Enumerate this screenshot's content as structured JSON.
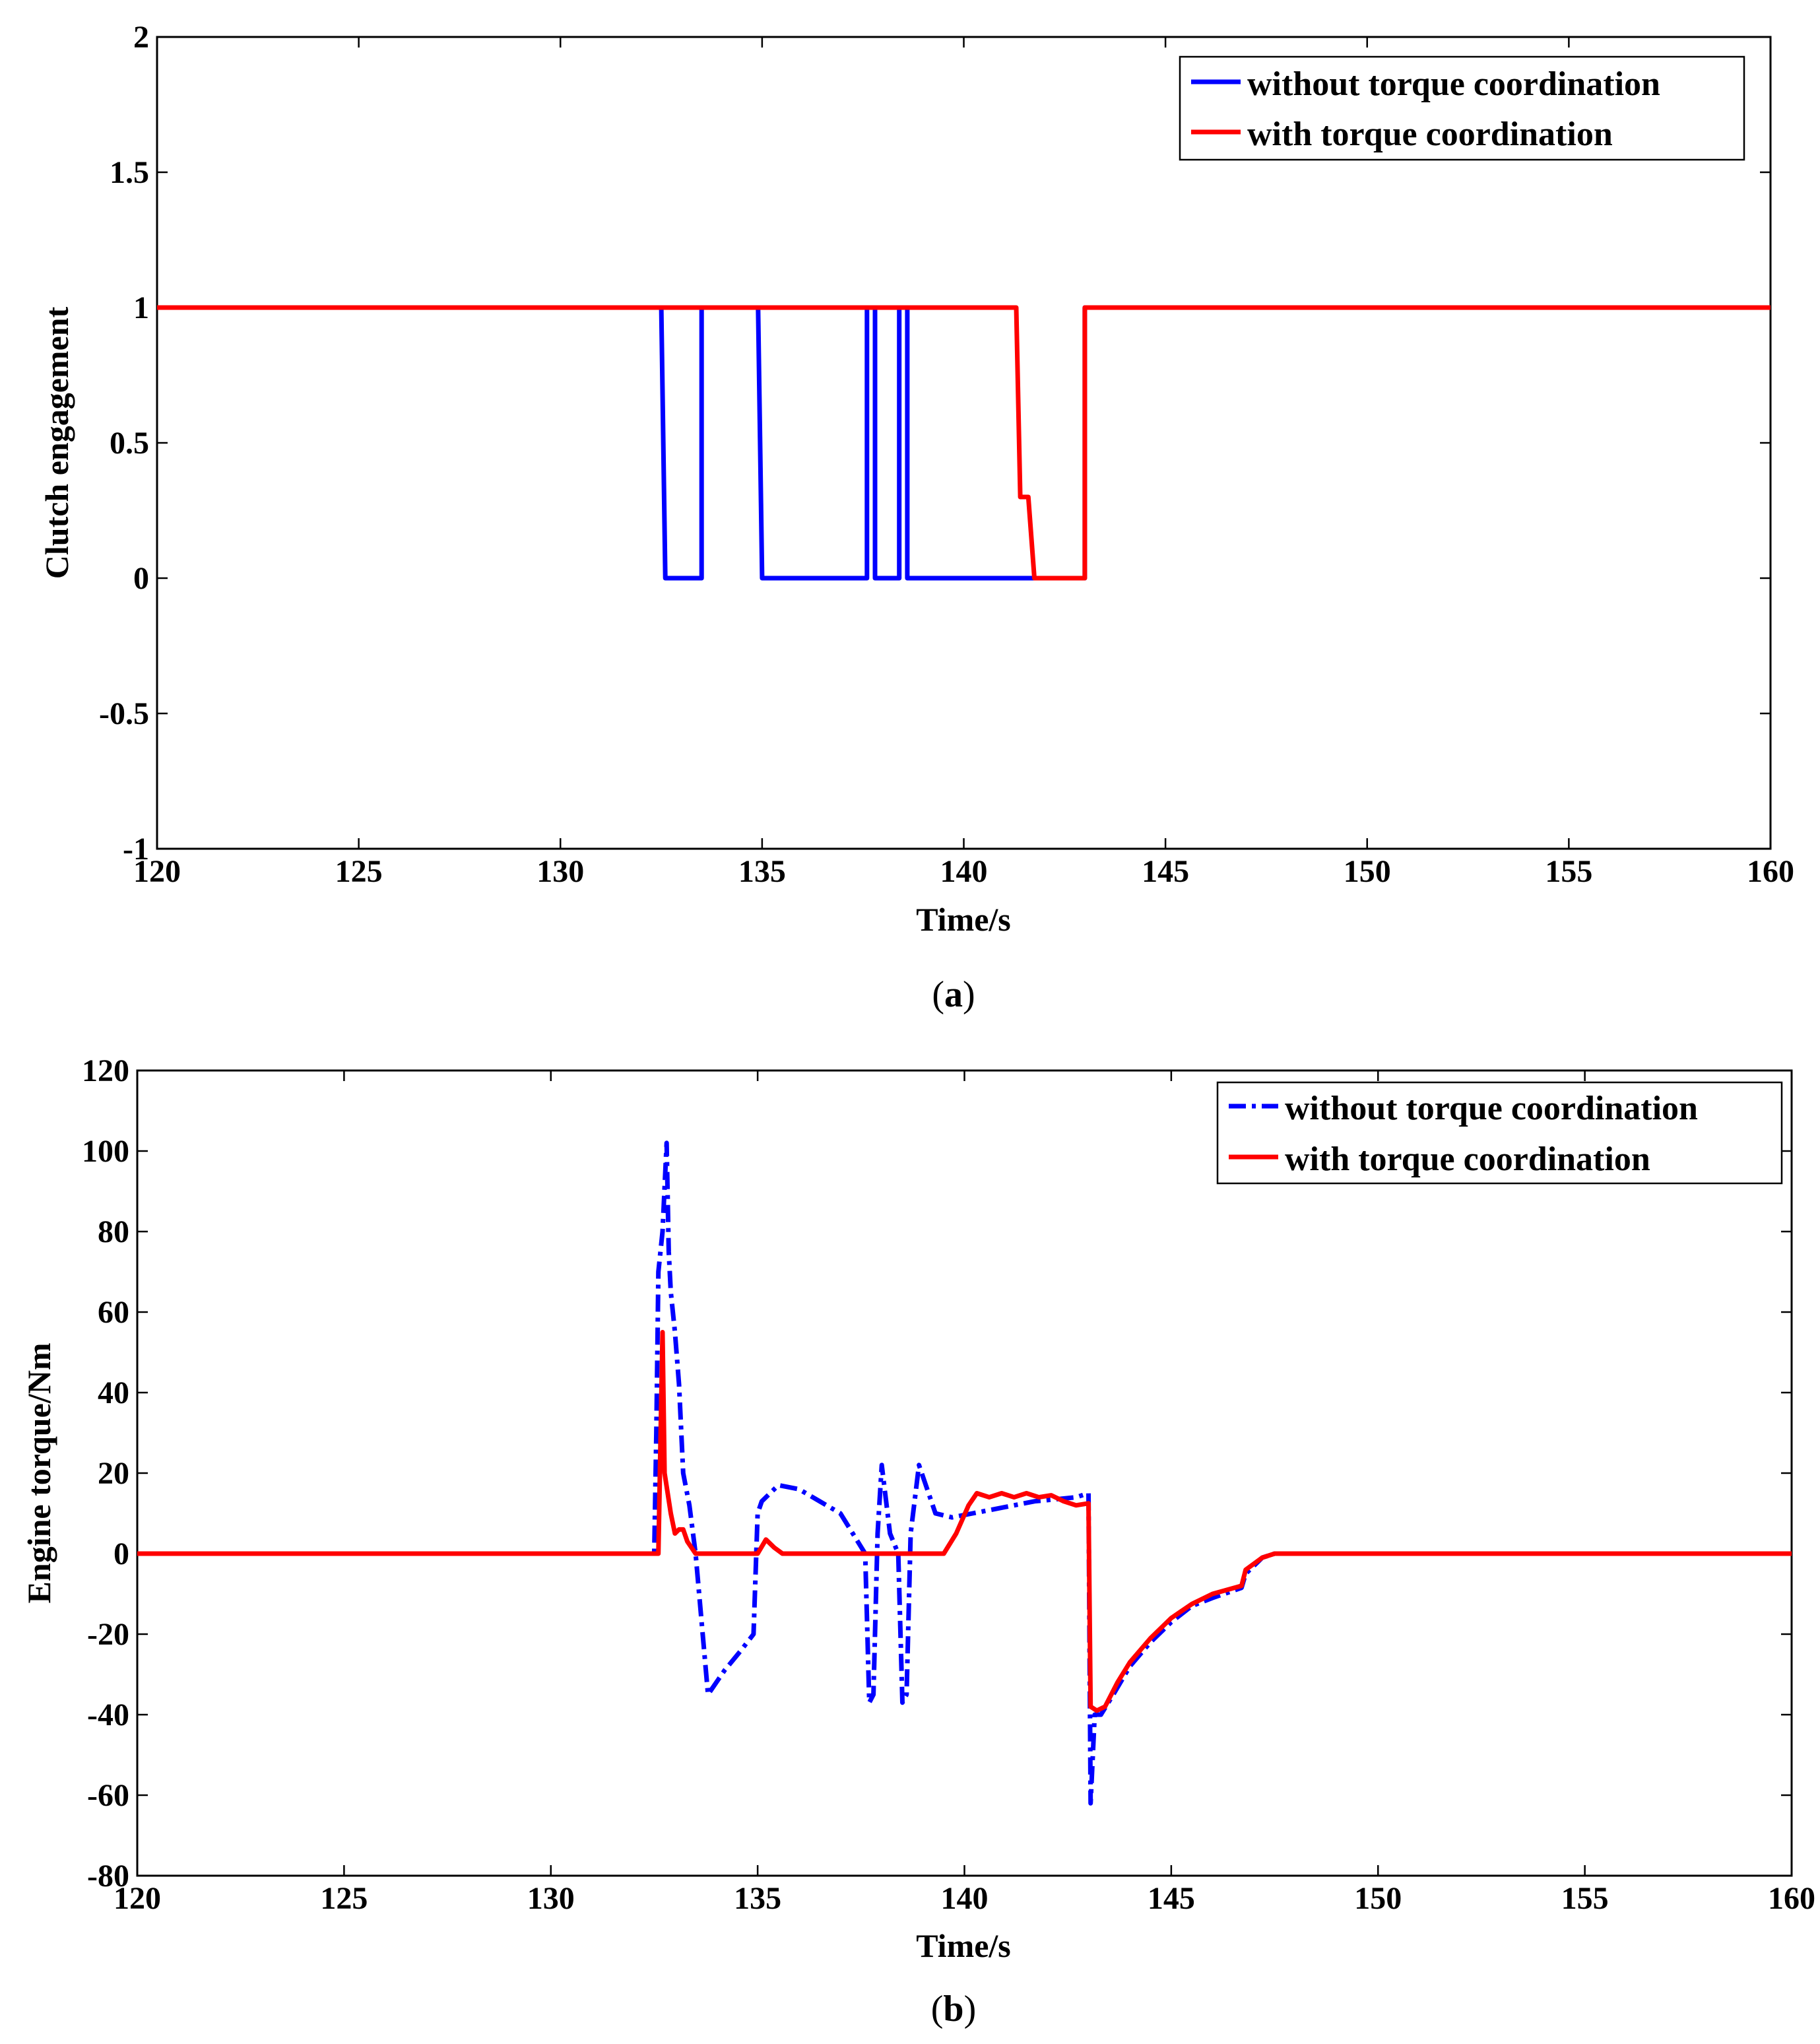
{
  "chart_data": [
    {
      "type": "line",
      "caption_open": "(",
      "caption_letter": "a",
      "caption_close": ")",
      "xlabel": "Time/s",
      "ylabel": "Clutch engagement",
      "xlim": [
        120,
        160
      ],
      "ylim": [
        -1,
        2
      ],
      "xticks": [
        "120",
        "125",
        "130",
        "135",
        "140",
        "145",
        "150",
        "155",
        "160"
      ],
      "yticks": [
        "-1",
        "-0.5",
        "0",
        "0.5",
        "1",
        "1.5",
        "2"
      ],
      "grid": false,
      "legend_position": "top-right",
      "series": [
        {
          "name": "without torque coordination",
          "color": "#0000ff",
          "style": "solid",
          "x": [
            120,
            132.5,
            132.6,
            133.5,
            133.5,
            134.9,
            135.0,
            137.6,
            137.6,
            137.8,
            137.8,
            138.4,
            138.4,
            138.6,
            138.6,
            143.0,
            143.0,
            160
          ],
          "y": [
            1,
            1,
            0,
            0,
            1,
            1,
            0,
            0,
            1,
            1,
            0,
            0,
            1,
            1,
            0,
            0,
            1,
            1
          ]
        },
        {
          "name": "with torque coordination",
          "color": "#ff0000",
          "style": "solid",
          "x": [
            120,
            141.3,
            141.4,
            141.6,
            141.75,
            143.0,
            143.0,
            160
          ],
          "y": [
            1,
            1,
            0.3,
            0.3,
            0,
            0,
            1,
            1
          ]
        }
      ]
    },
    {
      "type": "line",
      "caption_open": "(",
      "caption_letter": "b",
      "caption_close": ")",
      "xlabel": "Time/s",
      "ylabel": "Engine torque/Nm",
      "xlim": [
        120,
        160
      ],
      "ylim": [
        -80,
        120
      ],
      "xticks": [
        "120",
        "125",
        "130",
        "135",
        "140",
        "145",
        "150",
        "155",
        "160"
      ],
      "yticks": [
        "-80",
        "-60",
        "-40",
        "-20",
        "0",
        "20",
        "40",
        "60",
        "80",
        "100",
        "120"
      ],
      "grid": false,
      "legend_position": "top-right",
      "series": [
        {
          "name": "without torque coordination",
          "color": "#0000ff",
          "style": "dashdot",
          "x": [
            120,
            132.5,
            132.55,
            132.6,
            132.7,
            132.8,
            132.85,
            132.9,
            133.0,
            133.1,
            133.2,
            133.35,
            133.5,
            133.8,
            134.2,
            134.6,
            134.9,
            135.0,
            135.1,
            135.5,
            136.0,
            136.5,
            137.0,
            137.3,
            137.6,
            137.7,
            137.8,
            137.9,
            138.0,
            138.2,
            138.4,
            138.5,
            138.6,
            138.7,
            138.9,
            139.3,
            139.7,
            140.2,
            140.7,
            141.2,
            141.7,
            142.2,
            142.7,
            143.0,
            143.05,
            143.15,
            143.3,
            143.6,
            144.0,
            144.5,
            145.0,
            145.5,
            146.0,
            146.7,
            146.8,
            147.2,
            147.5,
            160
          ],
          "y": [
            0,
            0,
            30,
            70,
            80,
            102,
            75,
            65,
            55,
            42,
            20,
            12,
            0,
            -35,
            -29,
            -24,
            -20,
            10,
            13,
            17,
            16,
            13,
            10,
            5,
            0,
            -37,
            -35,
            5,
            22,
            5,
            0,
            -37,
            -35,
            5,
            22,
            10,
            9,
            10,
            11,
            12,
            13,
            13.5,
            14,
            15,
            -62,
            -40,
            -40,
            -35,
            -28,
            -22,
            -17,
            -13,
            -11,
            -8.5,
            -5,
            -1,
            0,
            0
          ]
        },
        {
          "name": "with torque coordination",
          "color": "#ff0000",
          "style": "solid",
          "x": [
            120,
            132.6,
            132.7,
            132.75,
            132.9,
            133.0,
            133.1,
            133.2,
            133.3,
            133.5,
            135.0,
            135.2,
            135.4,
            135.6,
            139.5,
            139.8,
            140.1,
            140.3,
            140.6,
            140.9,
            141.2,
            141.5,
            141.8,
            142.1,
            142.4,
            142.7,
            143.0,
            143.05,
            143.2,
            143.4,
            143.7,
            144.0,
            144.5,
            145.0,
            145.5,
            146.0,
            146.7,
            146.8,
            147.2,
            147.5,
            160
          ],
          "y": [
            0,
            0,
            55,
            20,
            10,
            5,
            6,
            6,
            3,
            0,
            0,
            3.5,
            1.5,
            0,
            0,
            5,
            12,
            15,
            14,
            15,
            14,
            15,
            14,
            14.5,
            13,
            12,
            12.5,
            -38,
            -39,
            -38,
            -32,
            -27,
            -21,
            -16,
            -12.5,
            -10,
            -8,
            -4,
            -1,
            0,
            0
          ]
        }
      ]
    }
  ]
}
